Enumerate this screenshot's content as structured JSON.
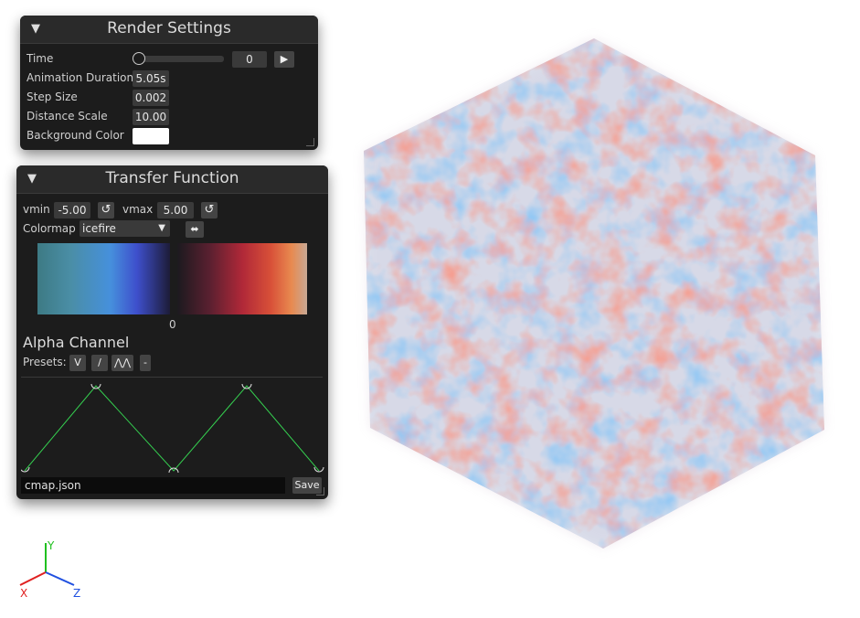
{
  "render_settings": {
    "title": "Render Settings",
    "time_label": "Time",
    "time_value": "0",
    "time_slider_fraction": 0,
    "anim_label": "Animation Duration",
    "anim_value": "5.05s",
    "step_label": "Step Size",
    "step_value": "0.002",
    "dist_label": "Distance Scale",
    "dist_value": "10.00",
    "bg_label": "Background Color",
    "bg_color": "#ffffff"
  },
  "transfer_function": {
    "title": "Transfer Function",
    "vmin_label": "vmin",
    "vmin_value": "-5.00",
    "vmax_label": "vmax",
    "vmax_value": "5.00",
    "colormap_label": "Colormap",
    "colormap_value": "icefire",
    "colorbar_center_label": "0",
    "alpha_title": "Alpha Channel",
    "presets_label": "Presets:",
    "preset_1": "V",
    "preset_2": "/",
    "preset_3": "⋀⋀",
    "preset_4": "-",
    "filename_value": "cmap.json",
    "save_label": "Save"
  },
  "axes": {
    "x_label": "X",
    "y_label": "Y",
    "z_label": "Z",
    "x_color": "#e02020",
    "y_color": "#20c020",
    "z_color": "#2050e0"
  },
  "volume": {
    "colors": [
      "#e8584a",
      "#4a90e0"
    ]
  }
}
